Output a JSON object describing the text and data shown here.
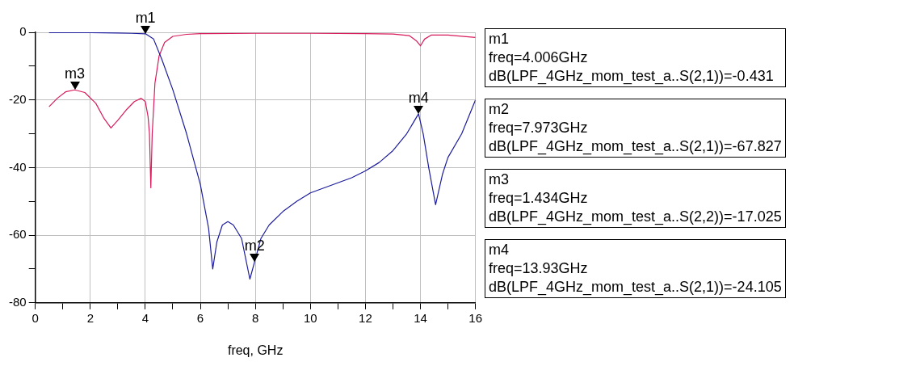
{
  "chart_data": {
    "type": "line",
    "xlabel": "freq, GHz",
    "xlim": [
      0,
      16
    ],
    "xticks": [
      0,
      {
        "value": 1,
        "label": null
      },
      2,
      {
        "value": 3,
        "label": null
      },
      4,
      {
        "value": 5,
        "label": null
      },
      6,
      {
        "value": 7,
        "label": null
      },
      8,
      {
        "value": 9,
        "label": null
      },
      10,
      {
        "value": 11,
        "label": null
      },
      12,
      {
        "value": 13,
        "label": null
      },
      14,
      {
        "value": 15,
        "label": null
      },
      16
    ],
    "ylim": [
      -80,
      0
    ],
    "yticks": [
      -80,
      {
        "value": -70,
        "label": null
      },
      -60,
      {
        "value": -50,
        "label": null
      },
      -40,
      {
        "value": -30,
        "label": null
      },
      -20,
      {
        "value": -10,
        "label": null
      },
      0
    ],
    "grid": true,
    "legend": false,
    "marker": "none",
    "line_style": "solid",
    "series": [
      {
        "color": "#1c1c9c",
        "x": [
          0.5,
          2,
          3,
          3.5,
          4.006,
          4.3,
          4.6,
          5,
          5.5,
          6,
          6.3,
          6.45,
          6.6,
          6.8,
          7,
          7.2,
          7.5,
          7.8,
          7.973,
          8.2,
          8.5,
          9,
          9.5,
          10,
          10.5,
          11,
          11.5,
          12,
          12.5,
          13,
          13.5,
          13.93,
          14.1,
          14.3,
          14.55,
          14.8,
          15,
          15.5,
          16
        ],
        "values": [
          -0.1,
          -0.1,
          -0.2,
          -0.3,
          -0.431,
          -2,
          -8,
          -17,
          -30,
          -45,
          -58,
          -70,
          -62,
          -57,
          -56,
          -57,
          -61,
          -73,
          -67.827,
          -61,
          -57,
          -53,
          -50,
          -47.5,
          -46,
          -44.5,
          -43,
          -41,
          -38.5,
          -35,
          -30,
          -24.105,
          -30,
          -40,
          -51,
          -42,
          -37,
          -30,
          -20
        ]
      },
      {
        "color": "#d81b5a",
        "x": [
          0.5,
          0.8,
          1.1,
          1.434,
          1.8,
          2.2,
          2.5,
          2.75,
          3,
          3.3,
          3.6,
          3.85,
          4,
          4.1,
          4.15,
          4.2,
          4.25,
          4.35,
          4.5,
          4.7,
          5,
          5.5,
          6,
          8,
          10,
          12,
          13,
          13.6,
          13.85,
          14,
          14.15,
          14.4,
          15,
          16
        ],
        "values": [
          -22,
          -19.5,
          -17.6,
          -17.025,
          -17.8,
          -21,
          -25.5,
          -28.3,
          -26,
          -23,
          -20.5,
          -19.5,
          -20.5,
          -25,
          -30,
          -46,
          -30,
          -15,
          -7,
          -3,
          -1.2,
          -0.6,
          -0.4,
          -0.3,
          -0.3,
          -0.4,
          -0.5,
          -1,
          -2.5,
          -4,
          -2,
          -0.8,
          -0.8,
          -1.5
        ]
      }
    ],
    "annotations": [
      {
        "text": "m1",
        "x": 4.006,
        "y": -0.431
      },
      {
        "text": "m2",
        "x": 7.973,
        "y": -67.827
      },
      {
        "text": "m3",
        "x": 1.434,
        "y": -17.025
      },
      {
        "text": "m4",
        "x": 13.93,
        "y": -24.105
      },
      "m1\nfreq=4.006GHz\ndB(LPF_4GHz_mom_test_a..S(2,1))=-0.431",
      "m2\nfreq=7.973GHz\ndB(LPF_4GHz_mom_test_a..S(2,1))=-67.827",
      "m3\nfreq=1.434GHz\ndB(LPF_4GHz_mom_test_a..S(2,2))=-17.025",
      "m4\nfreq=13.93GHz\ndB(LPF_4GHz_mom_test_a..S(2,1))=-24.105"
    ]
  }
}
